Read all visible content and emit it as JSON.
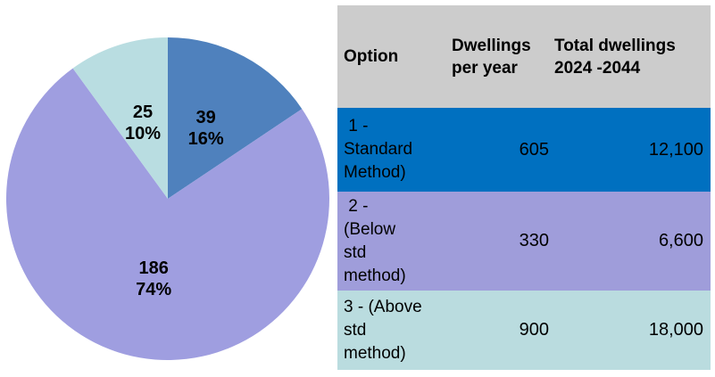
{
  "chart_data": {
    "type": "pie",
    "direction": "clockwise",
    "start_angle": "12-oclock",
    "total": 250,
    "label_style": "value and percent inside slices",
    "label_color": "#000000",
    "slices": [
      {
        "value": 39,
        "value_label": "39",
        "percent_label": "16%",
        "color": "#4f81bd"
      },
      {
        "value": 186,
        "value_label": "186",
        "percent_label": "74%",
        "color": "#9f9ee0"
      },
      {
        "value": 25,
        "value_label": "25",
        "percent_label": "10%",
        "color": "#b9dde1"
      }
    ]
  },
  "table": {
    "header_bg": "#cccccc",
    "text_color": "#000000",
    "columns": [
      {
        "label": "Option"
      },
      {
        "label": "Dwellings\nper year"
      },
      {
        "label": "Total dwellings\n2024 -2044"
      }
    ],
    "rows": [
      {
        "option": " 1 -\nStandard\nMethod)",
        "dwellings_per_year": "605",
        "total_dwellings": "12,100",
        "bg": "#0070c0"
      },
      {
        "option": " 2 -\n(Below\nstd\nmethod)",
        "dwellings_per_year": "330",
        "total_dwellings": "6,600",
        "bg": "#9f9dda"
      },
      {
        "option": "3 - (Above\nstd\nmethod)",
        "dwellings_per_year": "900",
        "total_dwellings": "18,000",
        "bg": "#badcdf"
      }
    ]
  }
}
